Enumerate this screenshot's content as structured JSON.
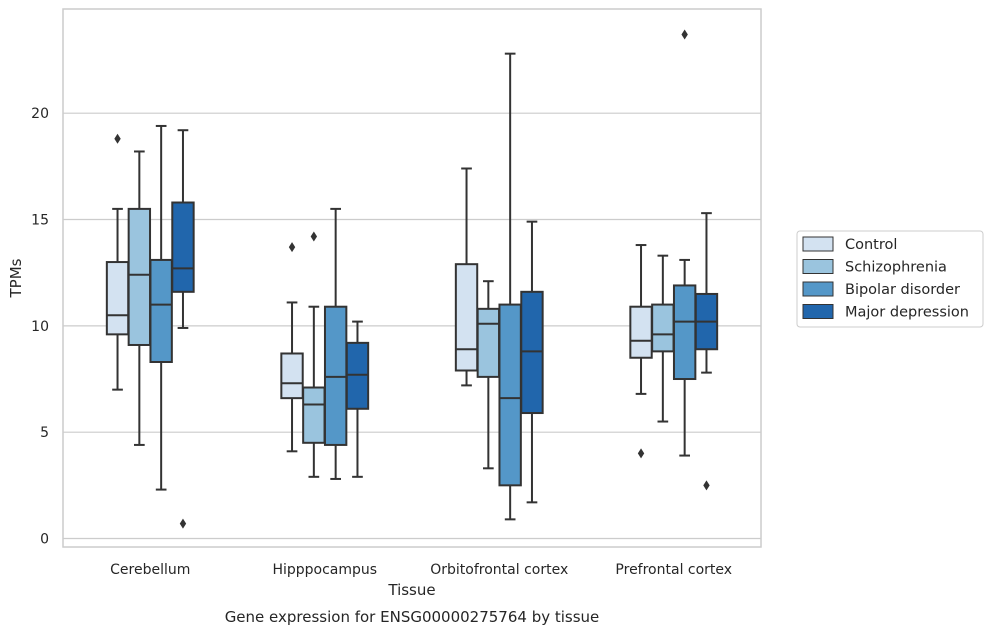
{
  "caption": "Gene expression for ENSG00000275764 by tissue",
  "chart_data": {
    "type": "box",
    "xlabel": "Tissue",
    "ylabel": "TPMs",
    "ylim": [
      -0.4,
      24.9
    ],
    "yticks": [
      0,
      5,
      10,
      15,
      20
    ],
    "grid": "horizontal",
    "legend_position": "right",
    "categories": [
      "Cerebellum",
      "Hipppocampus",
      "Orbitofrontal cortex",
      "Prefrontal cortex"
    ],
    "series": [
      {
        "name": "Control",
        "color": "#d3e2f1",
        "boxes": [
          {
            "whisker_low": 7.0,
            "q1": 9.6,
            "median": 10.5,
            "q3": 13.0,
            "whisker_high": 15.5,
            "outliers": [
              18.8
            ]
          },
          {
            "whisker_low": 4.1,
            "q1": 6.6,
            "median": 7.3,
            "q3": 8.7,
            "whisker_high": 11.1,
            "outliers": [
              13.7
            ]
          },
          {
            "whisker_low": 7.2,
            "q1": 7.9,
            "median": 8.9,
            "q3": 12.9,
            "whisker_high": 17.4,
            "outliers": []
          },
          {
            "whisker_low": 6.8,
            "q1": 8.5,
            "median": 9.3,
            "q3": 10.9,
            "whisker_high": 13.8,
            "outliers": [
              4.0
            ]
          }
        ]
      },
      {
        "name": "Schizophrenia",
        "color": "#9ac4de",
        "boxes": [
          {
            "whisker_low": 4.4,
            "q1": 9.1,
            "median": 12.4,
            "q3": 15.5,
            "whisker_high": 18.2,
            "outliers": []
          },
          {
            "whisker_low": 2.9,
            "q1": 4.5,
            "median": 6.3,
            "q3": 7.1,
            "whisker_high": 10.9,
            "outliers": [
              14.2
            ]
          },
          {
            "whisker_low": 3.3,
            "q1": 7.6,
            "median": 10.1,
            "q3": 10.8,
            "whisker_high": 12.1,
            "outliers": []
          },
          {
            "whisker_low": 5.5,
            "q1": 8.8,
            "median": 9.6,
            "q3": 11.0,
            "whisker_high": 13.3,
            "outliers": []
          }
        ]
      },
      {
        "name": "Bipolar disorder",
        "color": "#5497c8",
        "boxes": [
          {
            "whisker_low": 2.3,
            "q1": 8.3,
            "median": 11.0,
            "q3": 13.1,
            "whisker_high": 19.4,
            "outliers": []
          },
          {
            "whisker_low": 2.8,
            "q1": 4.4,
            "median": 7.6,
            "q3": 10.9,
            "whisker_high": 15.5,
            "outliers": []
          },
          {
            "whisker_low": 0.9,
            "q1": 2.5,
            "median": 6.6,
            "q3": 11.0,
            "whisker_high": 22.8,
            "outliers": []
          },
          {
            "whisker_low": 3.9,
            "q1": 7.5,
            "median": 10.2,
            "q3": 11.9,
            "whisker_high": 13.1,
            "outliers": [
              23.7
            ]
          }
        ]
      },
      {
        "name": "Major depression",
        "color": "#2166ac",
        "boxes": [
          {
            "whisker_low": 9.9,
            "q1": 11.6,
            "median": 12.7,
            "q3": 15.8,
            "whisker_high": 19.2,
            "outliers": [
              0.7
            ]
          },
          {
            "whisker_low": 2.9,
            "q1": 6.1,
            "median": 7.7,
            "q3": 9.2,
            "whisker_high": 10.2,
            "outliers": []
          },
          {
            "whisker_low": 1.7,
            "q1": 5.9,
            "median": 8.8,
            "q3": 11.6,
            "whisker_high": 14.9,
            "outliers": []
          },
          {
            "whisker_low": 7.8,
            "q1": 8.9,
            "median": 10.2,
            "q3": 11.5,
            "whisker_high": 15.3,
            "outliers": [
              2.5
            ]
          }
        ]
      }
    ]
  }
}
